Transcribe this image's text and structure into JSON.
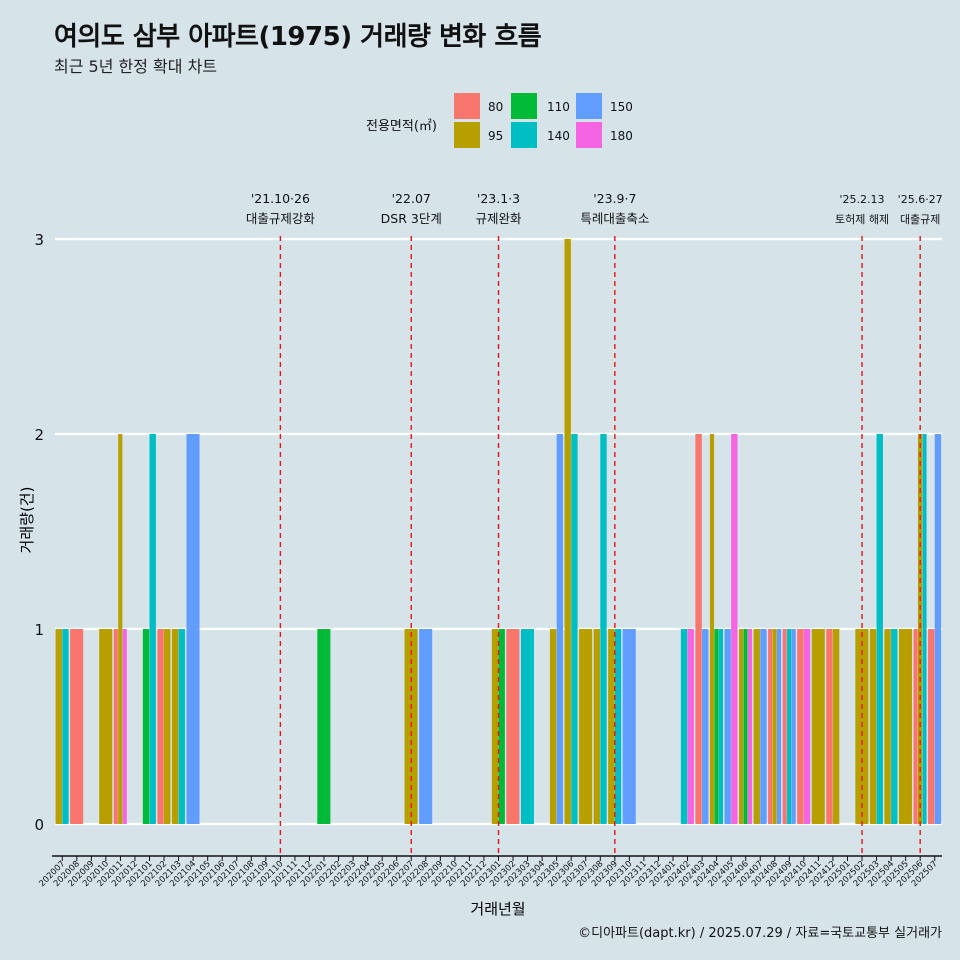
{
  "header": {
    "title": "여의도 삼부 아파트(1975) 거래량 변화 흐름",
    "subtitle": "최근 5년 한정 확대 차트"
  },
  "legend": {
    "title": "전용면적(㎡)",
    "items": [
      {
        "label": "80",
        "color": "#F8766D"
      },
      {
        "label": "95",
        "color": "#B79F00"
      },
      {
        "label": "110",
        "color": "#00BA38"
      },
      {
        "label": "140",
        "color": "#00BFC4"
      },
      {
        "label": "150",
        "color": "#619CFF"
      },
      {
        "label": "180",
        "color": "#F564E3"
      }
    ]
  },
  "caption": "©디아파트(dapt.kr) / 2025.07.29 / 자료=국토교통부 실거래가",
  "chart_data": {
    "type": "bar",
    "title": "여의도 삼부 아파트(1975) 거래량 변화 흐름",
    "xlabel": "거래년월",
    "ylabel": "거래량(건)",
    "ylim": [
      -0.15,
      3.3
    ],
    "yticks": [
      0,
      1,
      2,
      3
    ],
    "categories": [
      "202007",
      "202008",
      "202009",
      "202010",
      "202011",
      "202012",
      "202101",
      "202102",
      "202103",
      "202104",
      "202105",
      "202106",
      "202107",
      "202108",
      "202109",
      "202110",
      "202111",
      "202112",
      "202201",
      "202202",
      "202203",
      "202204",
      "202205",
      "202206",
      "202207",
      "202208",
      "202209",
      "202210",
      "202211",
      "202212",
      "202301",
      "202302",
      "202303",
      "202304",
      "202305",
      "202306",
      "202307",
      "202308",
      "202309",
      "202310",
      "202311",
      "202312",
      "202401",
      "202402",
      "202403",
      "202404",
      "202405",
      "202406",
      "202407",
      "202408",
      "202409",
      "202410",
      "202411",
      "202412",
      "202501",
      "202502",
      "202503",
      "202504",
      "202505",
      "202506",
      "202507"
    ],
    "series": [
      {
        "name": "80",
        "color": "#F8766D",
        "values": [
          0,
          1,
          0,
          0,
          1,
          0,
          0,
          1,
          0,
          0,
          0,
          0,
          0,
          0,
          0,
          0,
          0,
          0,
          0,
          0,
          0,
          0,
          0,
          0,
          0,
          0,
          0,
          0,
          0,
          0,
          0,
          1,
          0,
          0,
          0,
          0,
          0,
          0,
          0,
          0,
          0,
          0,
          0,
          0,
          2,
          0,
          0,
          0,
          0,
          1,
          1,
          1,
          0,
          1,
          0,
          0,
          0,
          0,
          0,
          1,
          1
        ]
      },
      {
        "name": "95",
        "color": "#B79F00",
        "values": [
          1,
          0,
          0,
          1,
          2,
          0,
          0,
          1,
          1,
          0,
          0,
          0,
          0,
          0,
          0,
          0,
          0,
          0,
          0,
          0,
          0,
          0,
          0,
          0,
          1,
          0,
          0,
          0,
          0,
          0,
          1,
          0,
          0,
          0,
          1,
          3,
          1,
          1,
          1,
          0,
          0,
          0,
          0,
          0,
          0,
          2,
          0,
          1,
          1,
          1,
          0,
          0,
          1,
          1,
          0,
          1,
          1,
          1,
          1,
          2,
          0
        ]
      },
      {
        "name": "110",
        "color": "#00BA38",
        "values": [
          0,
          0,
          0,
          0,
          0,
          0,
          1,
          0,
          0,
          0,
          0,
          0,
          0,
          0,
          0,
          0,
          0,
          0,
          1,
          0,
          0,
          0,
          0,
          0,
          0,
          0,
          0,
          0,
          0,
          0,
          1,
          0,
          0,
          0,
          0,
          0,
          0,
          0,
          0,
          0,
          0,
          0,
          0,
          0,
          0,
          1,
          0,
          1,
          0,
          0,
          0,
          0,
          0,
          0,
          0,
          0,
          0,
          0,
          0,
          0,
          0
        ]
      },
      {
        "name": "140",
        "color": "#00BFC4",
        "values": [
          1,
          0,
          0,
          0,
          0,
          0,
          2,
          0,
          1,
          0,
          0,
          0,
          0,
          0,
          0,
          0,
          0,
          0,
          0,
          0,
          0,
          0,
          0,
          0,
          0,
          0,
          0,
          0,
          0,
          0,
          0,
          0,
          1,
          0,
          0,
          2,
          0,
          2,
          1,
          0,
          0,
          0,
          0,
          1,
          0,
          1,
          0,
          0,
          0,
          0,
          1,
          0,
          0,
          0,
          0,
          0,
          2,
          1,
          0,
          2,
          0
        ]
      },
      {
        "name": "150",
        "color": "#619CFF",
        "values": [
          0,
          0,
          0,
          0,
          0,
          0,
          0,
          0,
          0,
          2,
          0,
          0,
          0,
          0,
          0,
          0,
          0,
          0,
          0,
          0,
          0,
          0,
          0,
          0,
          0,
          1,
          0,
          0,
          0,
          0,
          0,
          0,
          0,
          0,
          2,
          0,
          0,
          0,
          0,
          1,
          0,
          0,
          0,
          0,
          1,
          0,
          1,
          0,
          1,
          1,
          1,
          0,
          0,
          0,
          0,
          0,
          0,
          0,
          0,
          0,
          2
        ]
      },
      {
        "name": "180",
        "color": "#F564E3",
        "values": [
          0,
          0,
          0,
          0,
          1,
          0,
          0,
          0,
          0,
          0,
          0,
          0,
          0,
          0,
          0,
          0,
          0,
          0,
          0,
          0,
          0,
          0,
          0,
          0,
          0,
          0,
          0,
          0,
          0,
          0,
          0,
          0,
          0,
          0,
          0,
          0,
          0,
          0,
          0,
          0,
          0,
          0,
          0,
          1,
          0,
          0,
          2,
          1,
          0,
          0,
          0,
          1,
          0,
          0,
          0,
          0,
          0,
          0,
          0,
          0,
          0
        ]
      }
    ],
    "annotations": [
      {
        "x": "202110",
        "date": "'21.10·26",
        "label": "대출규제강화"
      },
      {
        "x": "202207",
        "date": "'22.07",
        "label": "DSR 3단계"
      },
      {
        "x": "202301",
        "date": "'23.1·3",
        "label": "규제완화"
      },
      {
        "x": "202309",
        "date": "'23.9·7",
        "label": "특례대출축소"
      },
      {
        "x": "202502",
        "date": "'25.2.13",
        "label": "토허제 해제"
      },
      {
        "x": "202506",
        "date": "'25.6·27",
        "label": "대출규제"
      }
    ]
  }
}
